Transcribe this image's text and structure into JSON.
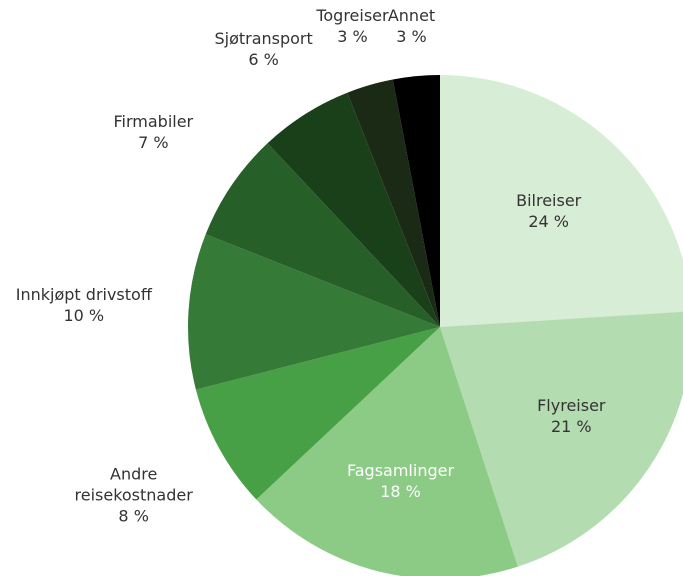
{
  "chart_data": {
    "type": "pie",
    "categories": [
      "Bilreiser",
      "Flyreiser",
      "Fagsamlinger",
      "Andre reisekostnader",
      "Innkjøpt drivstoff",
      "Firmabiler",
      "Sjøtransport",
      "Togreiser",
      "Annet"
    ],
    "values": [
      24,
      21,
      18,
      8,
      10,
      7,
      6,
      3,
      3
    ],
    "value_labels": [
      "24 %",
      "21 %",
      "18 %",
      "8 %",
      "10 %",
      "7 %",
      "6 %",
      "3 %",
      "3 %"
    ],
    "colors": [
      "#d8edd6",
      "#b3dcb0",
      "#8ccb86",
      "#47a046",
      "#357a36",
      "#275f29",
      "#1a4019",
      "#1b2a14",
      "#000000"
    ]
  }
}
